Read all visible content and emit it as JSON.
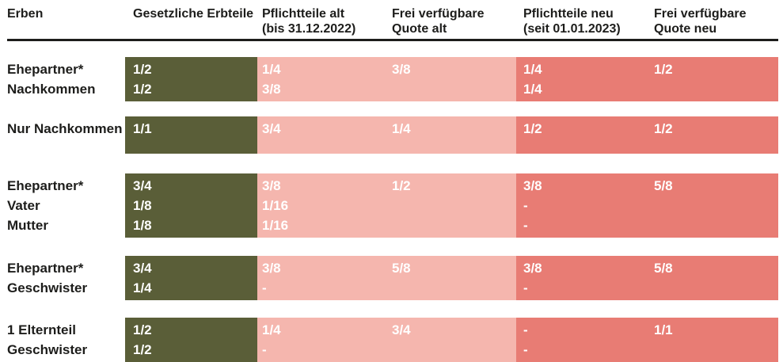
{
  "table": {
    "header": {
      "columns": [
        {
          "id": "erben",
          "line1": "Erben",
          "line2": ""
        },
        {
          "id": "gesetzliche-erbteile",
          "line1": "Gesetzliche Erbteile",
          "line2": ""
        },
        {
          "id": "pflichtteile-alt",
          "line1": "Pflichtteile alt",
          "line2": "(bis 31.12.2022)"
        },
        {
          "id": "frei-verfuegbare-quote-alt",
          "line1": "Frei verfügbare",
          "line2": "Quote alt"
        },
        {
          "id": "pflichtteile-neu",
          "line1": "Pflichtteile neu",
          "line2": "(seit 01.01.2023)"
        },
        {
          "id": "frei-verfuegbare-quote-neu",
          "line1": "Frei verfügbare",
          "line2": "Quote neu"
        }
      ]
    },
    "groups": [
      {
        "heirs": [
          "Ehepartner*",
          "Nachkommen"
        ],
        "gesetzliche_erbteile": [
          "1/2",
          "1/2"
        ],
        "pflichtteile_alt": [
          "1/4",
          "3/8"
        ],
        "frei_quote_alt": [
          "3/8"
        ],
        "pflichtteile_neu": [
          "1/4",
          "1/4"
        ],
        "frei_quote_neu": [
          "1/2"
        ]
      },
      {
        "heirs": [
          "Nur Nachkommen"
        ],
        "gesetzliche_erbteile": [
          "1/1"
        ],
        "pflichtteile_alt": [
          "3/4"
        ],
        "frei_quote_alt": [
          "1/4"
        ],
        "pflichtteile_neu": [
          "1/2"
        ],
        "frei_quote_neu": [
          "1/2"
        ]
      },
      {
        "heirs": [
          "Ehepartner*",
          "Vater",
          "Mutter"
        ],
        "gesetzliche_erbteile": [
          "3/4",
          "1/8",
          "1/8"
        ],
        "pflichtteile_alt": [
          "3/8",
          "1/16",
          "1/16"
        ],
        "frei_quote_alt": [
          "1/2"
        ],
        "pflichtteile_neu": [
          "3/8",
          "-",
          "-"
        ],
        "frei_quote_neu": [
          "5/8"
        ]
      },
      {
        "heirs": [
          "Ehepartner*",
          "Geschwister"
        ],
        "gesetzliche_erbteile": [
          "3/4",
          "1/4"
        ],
        "pflichtteile_alt": [
          "3/8",
          "-"
        ],
        "frei_quote_alt": [
          "5/8"
        ],
        "pflichtteile_neu": [
          "3/8",
          "-"
        ],
        "frei_quote_neu": [
          "5/8"
        ]
      },
      {
        "heirs": [
          "1 Elternteil",
          "Geschwister"
        ],
        "gesetzliche_erbteile": [
          "1/2",
          "1/2"
        ],
        "pflichtteile_alt": [
          "1/4",
          "-"
        ],
        "frei_quote_alt": [
          "3/4"
        ],
        "pflichtteile_neu": [
          "-",
          "-"
        ],
        "frei_quote_neu": [
          "1/1"
        ]
      }
    ]
  },
  "colors": {
    "green": "#5a5e38",
    "light_pink": "#f5b6ae",
    "dark_pink": "#e87c74",
    "ink": "#1d1d1b",
    "band_text": "#ffffff"
  }
}
